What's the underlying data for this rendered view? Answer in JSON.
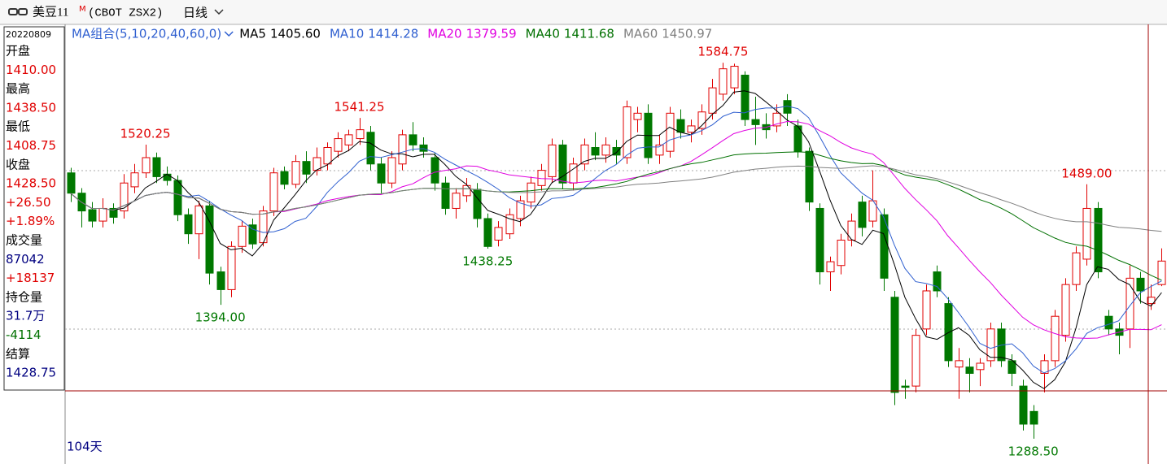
{
  "toolbar": {
    "symbol": "美豆11",
    "superscript": "M",
    "code": "(CBOT ZSX2)",
    "period": "日线"
  },
  "info": [
    {
      "text": "20220809",
      "color": "#000000"
    },
    {
      "text": "开盘",
      "color": "#000000"
    },
    {
      "text": "1410.00",
      "color": "#e00000"
    },
    {
      "text": "最高",
      "color": "#000000"
    },
    {
      "text": "1438.50",
      "color": "#e00000"
    },
    {
      "text": "最低",
      "color": "#000000"
    },
    {
      "text": "1408.75",
      "color": "#e00000"
    },
    {
      "text": "收盘",
      "color": "#000000"
    },
    {
      "text": "1428.50",
      "color": "#e00000"
    },
    {
      "text": "+26.50",
      "color": "#e00000"
    },
    {
      "text": "+1.89%",
      "color": "#e00000"
    },
    {
      "text": "成交量",
      "color": "#000000"
    },
    {
      "text": "87042",
      "color": "#000080"
    },
    {
      "text": "+18137",
      "color": "#e00000"
    },
    {
      "text": "持仓量",
      "color": "#000000"
    },
    {
      "text": "31.7万",
      "color": "#000080"
    },
    {
      "text": "-4114",
      "color": "#007000"
    },
    {
      "text": "结算",
      "color": "#000000"
    },
    {
      "text": "1428.75",
      "color": "#000080"
    }
  ],
  "days_label": "104天",
  "chart_data": {
    "type": "candlestick",
    "ma_label": "MA组合(5,10,20,40,60,0)",
    "ma": [
      {
        "name": "MA5",
        "value": 1405.6,
        "value_label": "1405.60",
        "color": "#000000"
      },
      {
        "name": "MA10",
        "value": 1414.28,
        "value_label": "1414.28",
        "color": "#3060d0"
      },
      {
        "name": "MA20",
        "value": 1379.59,
        "value_label": "1379.59",
        "color": "#e000e0"
      },
      {
        "name": "MA40",
        "value": 1411.68,
        "value_label": "1411.68",
        "color": "#007000"
      },
      {
        "name": "MA60",
        "value": 1450.97,
        "value_label": "1450.97",
        "color": "#808080"
      }
    ],
    "up_color": "#e00000",
    "down_color": "#007800",
    "ylim": [
      1275,
      1615
    ],
    "annotations": [
      {
        "value": 1520.25,
        "label": "1520.25",
        "side": "high"
      },
      {
        "value": 1541.25,
        "label": "1541.25",
        "side": "high"
      },
      {
        "value": 1584.75,
        "label": "1584.75",
        "side": "high"
      },
      {
        "value": 1489,
        "label": "1489.00",
        "side": "high"
      },
      {
        "value": 1394,
        "label": "1394.00",
        "side": "low"
      },
      {
        "value": 1438.25,
        "label": "1438.25",
        "side": "low"
      },
      {
        "value": 1288.5,
        "label": "1288.50",
        "side": "low"
      }
    ],
    "candles": [
      [
        1498,
        1502,
        1475,
        1482
      ],
      [
        1482,
        1486,
        1455,
        1468
      ],
      [
        1469,
        1475,
        1455,
        1460
      ],
      [
        1460,
        1478,
        1455,
        1470
      ],
      [
        1470,
        1474,
        1458,
        1463
      ],
      [
        1468,
        1497,
        1462,
        1490
      ],
      [
        1487,
        1505,
        1482,
        1498
      ],
      [
        1498,
        1520.25,
        1494,
        1510
      ],
      [
        1510,
        1514,
        1490,
        1495
      ],
      [
        1497,
        1503,
        1488,
        1492
      ],
      [
        1492,
        1496,
        1460,
        1465
      ],
      [
        1465,
        1470,
        1442,
        1450
      ],
      [
        1450,
        1476,
        1430,
        1472
      ],
      [
        1472,
        1476,
        1410,
        1419
      ],
      [
        1420,
        1424,
        1394,
        1406
      ],
      [
        1406,
        1444,
        1400,
        1440
      ],
      [
        1440,
        1460,
        1435,
        1456
      ],
      [
        1457,
        1462,
        1438,
        1442
      ],
      [
        1443,
        1472,
        1440,
        1468
      ],
      [
        1468,
        1502,
        1464,
        1498
      ],
      [
        1499,
        1503,
        1485,
        1489
      ],
      [
        1489,
        1512,
        1486,
        1507
      ],
      [
        1507,
        1515,
        1490,
        1497
      ],
      [
        1500,
        1518,
        1496,
        1510
      ],
      [
        1505,
        1522,
        1500,
        1518
      ],
      [
        1515,
        1530,
        1510,
        1525
      ],
      [
        1520,
        1532,
        1515,
        1528
      ],
      [
        1525,
        1541.25,
        1520,
        1532
      ],
      [
        1530,
        1535,
        1500,
        1505
      ],
      [
        1505,
        1510,
        1482,
        1490
      ],
      [
        1490,
        1515,
        1486,
        1510
      ],
      [
        1505,
        1532,
        1500,
        1528
      ],
      [
        1528,
        1538,
        1515,
        1520
      ],
      [
        1520,
        1526,
        1510,
        1515
      ],
      [
        1510,
        1514,
        1484,
        1490
      ],
      [
        1490,
        1495,
        1465,
        1470
      ],
      [
        1470,
        1486,
        1462,
        1482
      ],
      [
        1480,
        1494,
        1475,
        1488
      ],
      [
        1485,
        1490,
        1455,
        1462
      ],
      [
        1462,
        1466,
        1438.25,
        1440
      ],
      [
        1445,
        1460,
        1440,
        1455
      ],
      [
        1450,
        1470,
        1446,
        1465
      ],
      [
        1462,
        1480,
        1456,
        1476
      ],
      [
        1475,
        1495,
        1470,
        1490
      ],
      [
        1488,
        1505,
        1484,
        1500
      ],
      [
        1495,
        1525,
        1490,
        1520
      ],
      [
        1520,
        1524,
        1485,
        1490
      ],
      [
        1490,
        1510,
        1484,
        1505
      ],
      [
        1505,
        1525,
        1500,
        1520
      ],
      [
        1518,
        1530,
        1508,
        1512
      ],
      [
        1512,
        1526,
        1506,
        1520
      ],
      [
        1518,
        1524,
        1505,
        1512
      ],
      [
        1510,
        1555,
        1505,
        1550
      ],
      [
        1540,
        1550,
        1530,
        1545
      ],
      [
        1545,
        1552,
        1505,
        1510
      ],
      [
        1512,
        1528,
        1505,
        1520
      ],
      [
        1515,
        1550,
        1510,
        1545
      ],
      [
        1540,
        1548,
        1525,
        1530
      ],
      [
        1530,
        1540,
        1522,
        1535
      ],
      [
        1533,
        1552,
        1528,
        1546
      ],
      [
        1545,
        1572,
        1540,
        1565
      ],
      [
        1560,
        1584.75,
        1555,
        1580
      ],
      [
        1565,
        1584,
        1560,
        1582
      ],
      [
        1575,
        1578,
        1535,
        1540
      ],
      [
        1540,
        1558,
        1520,
        1536
      ],
      [
        1536,
        1545,
        1525,
        1532
      ],
      [
        1535,
        1552,
        1530,
        1545
      ],
      [
        1555,
        1560,
        1535,
        1545
      ],
      [
        1535,
        1540,
        1510,
        1515
      ],
      [
        1515,
        1518,
        1468,
        1475
      ],
      [
        1470,
        1474,
        1410,
        1420
      ],
      [
        1420,
        1432,
        1405,
        1428
      ],
      [
        1425,
        1450,
        1418,
        1445
      ],
      [
        1445,
        1466,
        1440,
        1460
      ],
      [
        1475,
        1480,
        1448,
        1455
      ],
      [
        1460,
        1500,
        1455,
        1476
      ],
      [
        1465,
        1470,
        1405,
        1415
      ],
      [
        1400,
        1405,
        1315,
        1325
      ],
      [
        1330,
        1335,
        1320,
        1329
      ],
      [
        1330,
        1375,
        1325,
        1370
      ],
      [
        1375,
        1410,
        1370,
        1405
      ],
      [
        1420,
        1425,
        1400,
        1405
      ],
      [
        1395,
        1400,
        1345,
        1350
      ],
      [
        1345,
        1360,
        1320,
        1350
      ],
      [
        1345,
        1352,
        1325,
        1340
      ],
      [
        1343,
        1352,
        1330,
        1348
      ],
      [
        1350,
        1380,
        1345,
        1375
      ],
      [
        1375,
        1380,
        1345,
        1350
      ],
      [
        1350,
        1355,
        1330,
        1340
      ],
      [
        1330,
        1335,
        1295,
        1300
      ],
      [
        1310,
        1315,
        1288.5,
        1300
      ],
      [
        1340,
        1355,
        1325,
        1350
      ],
      [
        1350,
        1390,
        1345,
        1385
      ],
      [
        1370,
        1415,
        1365,
        1410
      ],
      [
        1410,
        1440,
        1405,
        1435
      ],
      [
        1430,
        1489,
        1425,
        1470
      ],
      [
        1470,
        1475,
        1415,
        1420
      ],
      [
        1385,
        1390,
        1370,
        1375
      ],
      [
        1375,
        1380,
        1355,
        1370
      ],
      [
        1375,
        1425,
        1360,
        1415
      ],
      [
        1415,
        1420,
        1395,
        1405
      ],
      [
        1395,
        1410,
        1390,
        1400
      ],
      [
        1410,
        1438.5,
        1408.75,
        1428.5
      ]
    ]
  }
}
